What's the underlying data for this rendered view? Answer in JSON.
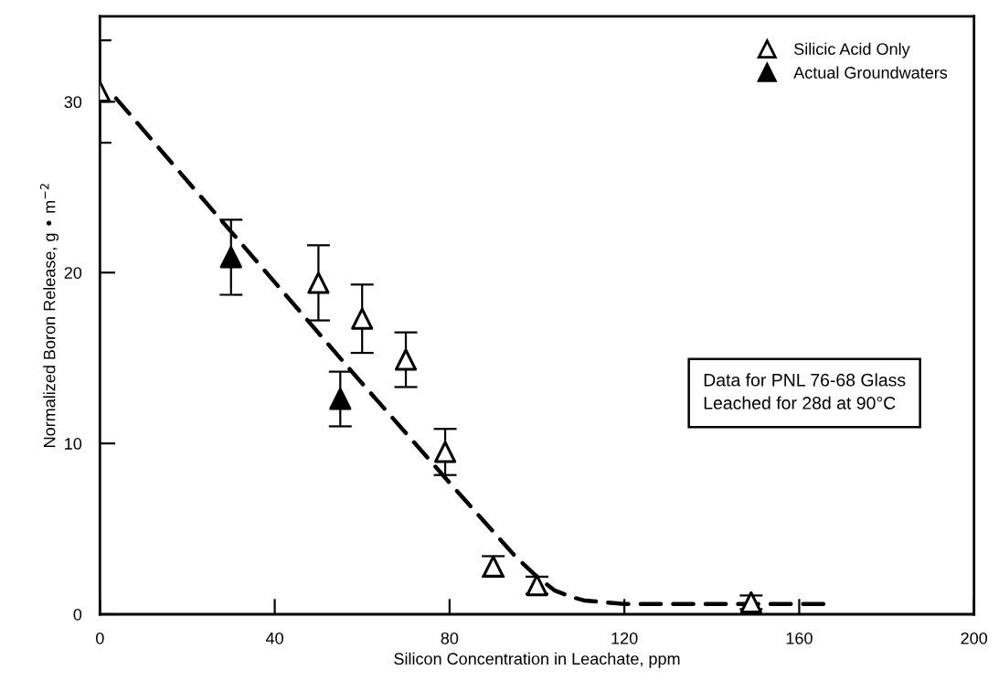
{
  "chart_data": {
    "type": "scatter",
    "xlabel": "Silicon Concentration in Leachate, ppm",
    "ylabel": "Normalized Boron Release, g • m$^{−2}$",
    "xlim": [
      0,
      200
    ],
    "xticks": [
      0,
      40,
      80,
      120,
      160,
      200
    ],
    "ylim": [
      0,
      35
    ],
    "yticks": [
      0,
      10,
      20,
      30
    ],
    "grid": false,
    "legend": "top right",
    "series": [
      {
        "name": "Silicic Acid Only",
        "marker": "triangle",
        "color": "#ffffff",
        "x": [
          0,
          50,
          60,
          70,
          79,
          90,
          100,
          149
        ],
        "values": [
          30.6,
          19.4,
          17.3,
          14.9,
          9.5,
          2.8,
          1.7,
          0.7
        ],
        "errors": [
          3,
          2.2,
          2,
          1.6,
          1.35,
          0.6,
          0.5,
          0.4
        ]
      },
      {
        "name": "Actual Groundwaters",
        "marker": "triangle",
        "color": "#000000",
        "x": [
          30,
          55
        ],
        "values": [
          20.9,
          12.6
        ],
        "errors": [
          2.2,
          1.6
        ]
      },
      {
        "type": "line",
        "line_style": "dashed",
        "marker": "none",
        "color": "#000000",
        "x": [
          3.7,
          30,
          58,
          80,
          95,
          100,
          104,
          108,
          111,
          120,
          167
        ],
        "values": [
          30.2,
          22.4,
          14.1,
          7.7,
          3.4,
          2.2,
          1.4,
          1.0,
          0.8,
          0.6,
          0.6
        ]
      }
    ],
    "annotations": [
      "Data for PNL 76-68 Glass\nLeached for 28d at 90°C"
    ]
  }
}
